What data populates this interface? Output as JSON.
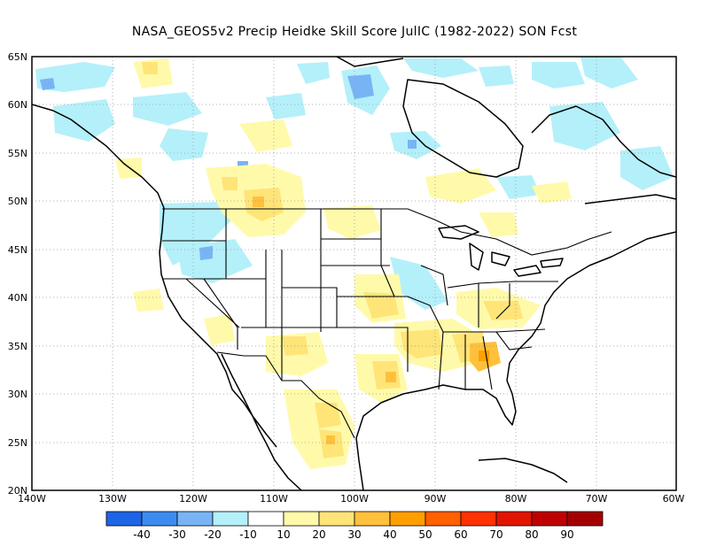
{
  "title": "NASA_GEOS5v2 Precip Heidke Skill Score JulIC (1982-2022) SON Fcst",
  "map": {
    "lon_labels": [
      "140W",
      "130W",
      "120W",
      "110W",
      "100W",
      "90W",
      "80W",
      "70W",
      "60W"
    ],
    "lat_labels": [
      "65N",
      "60N",
      "55N",
      "50N",
      "45N",
      "40N",
      "35N",
      "30N",
      "25N",
      "20N"
    ],
    "lon_range": [
      -140,
      -60
    ],
    "lat_range": [
      20,
      65
    ],
    "grid": "dotted"
  },
  "colorbar": {
    "colors": [
      "#1e64e6",
      "#3c8cf0",
      "#78b4f5",
      "#b4f0fa",
      "#ffffff",
      "#fffaaa",
      "#ffe478",
      "#ffc03c",
      "#ffa000",
      "#ff6000",
      "#ff3200",
      "#e11400",
      "#c00000",
      "#a50000"
    ],
    "labels": [
      "-40",
      "-30",
      "-20",
      "-10",
      "10",
      "20",
      "30",
      "40",
      "50",
      "60",
      "70",
      "80",
      "90"
    ]
  }
}
